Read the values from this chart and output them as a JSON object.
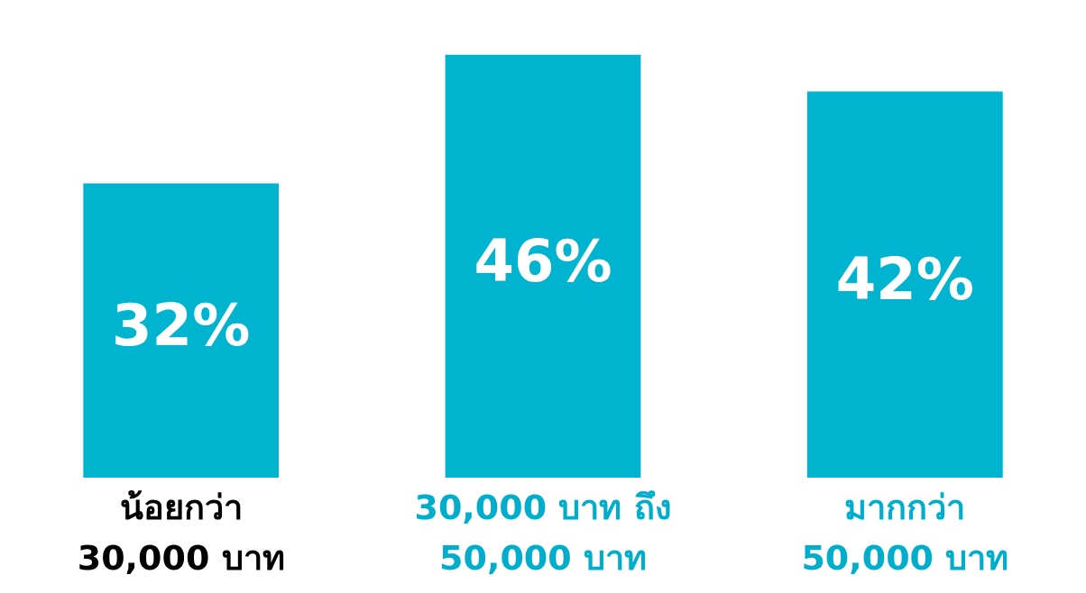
{
  "chart_data": {
    "type": "bar",
    "categories": [
      "น้อยกว่า 30,000 บาท",
      "30,000 บาท ถึง 50,000 บาท",
      "มากกว่า 50,000 บาท"
    ],
    "values": [
      32,
      46,
      42
    ],
    "value_labels": [
      "32%",
      "46%",
      "42%"
    ],
    "color": "#00b4cf"
  }
}
